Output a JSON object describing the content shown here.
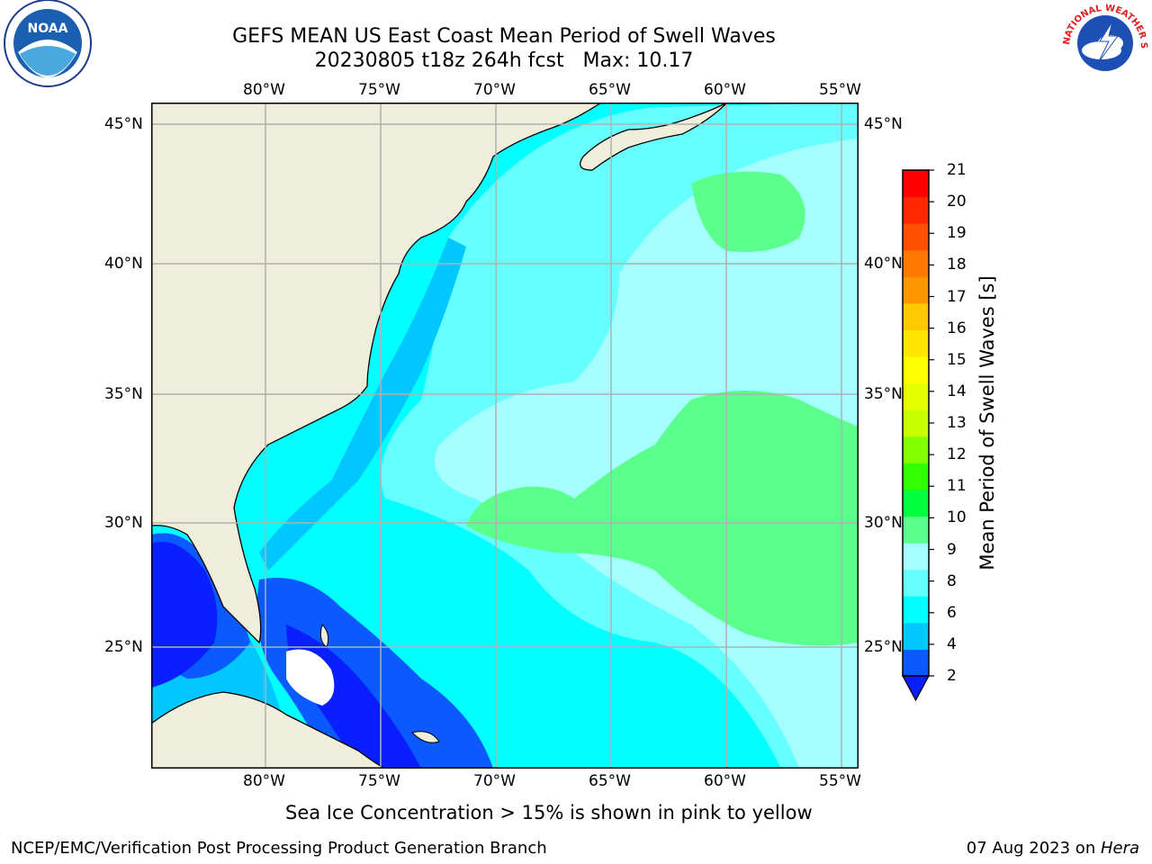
{
  "header": {
    "title_line1": "GEFS MEAN US East Coast Mean Period of Swell Waves",
    "title_line2": "20230805 t18z 264h fcst   Max: 10.17"
  },
  "logos": {
    "left": {
      "icon": "noaa-logo-icon",
      "text": "NOAA"
    },
    "right": {
      "icon": "nws-logo-icon",
      "text": "NATIONAL WEATHER SERVICE"
    }
  },
  "map": {
    "lon_labels": [
      "80°W",
      "75°W",
      "70°W",
      "65°W",
      "60°W",
      "55°W"
    ],
    "lat_labels": [
      "45°N",
      "40°N",
      "35°N",
      "30°N",
      "25°N"
    ],
    "colors": {
      "land": "#efeedb",
      "coast": "#000000",
      "grid": "#b0b0b0",
      "missing": "#ffffff"
    }
  },
  "colorbar": {
    "label": "Mean Period of Swell Waves [s]",
    "tick_labels": [
      "2",
      "4",
      "6",
      "8",
      "9",
      "10",
      "11",
      "12",
      "13",
      "14",
      "15",
      "16",
      "17",
      "18",
      "19",
      "20",
      "21"
    ],
    "colors": [
      "#0a5aff",
      "#00c8ff",
      "#00ffff",
      "#66ffff",
      "#a6ffff",
      "#5aff8c",
      "#00ff3c",
      "#32ff00",
      "#82ff00",
      "#c8ff00",
      "#e6ff00",
      "#ffff00",
      "#ffe600",
      "#ffc800",
      "#ff9600",
      "#ff7800",
      "#ff5000",
      "#ff2800",
      "#ff0000"
    ],
    "extend_color": "#0a1fff"
  },
  "footer": {
    "note": "Sea Ice Concentration > 15% is shown in pink to yellow",
    "credit": "NCEP/EMC/Verification Post Processing Product Generation Branch",
    "date_prefix": "07 Aug 2023 on ",
    "date_machine": "Hera"
  }
}
